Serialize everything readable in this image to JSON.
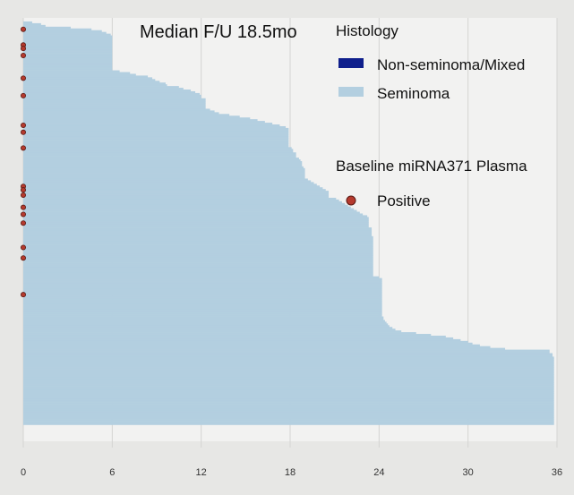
{
  "chart_data": {
    "type": "bar",
    "orientation": "horizontal",
    "title": "Median F/U 18.5mo",
    "xlabel": "",
    "ylabel": "",
    "xlim": [
      0,
      36
    ],
    "x_ticks": [
      "0",
      "6",
      "12",
      "18",
      "24",
      "30",
      "36"
    ],
    "grid": "vertical",
    "legend": {
      "placement": "top-right",
      "histology_title": "Histology",
      "histology_items": [
        {
          "label": "Non-seminoma/Mixed",
          "color": "#0f1f8c"
        },
        {
          "label": "Seminoma",
          "color": "#b3cfe0"
        }
      ],
      "marker_title": "Baseline miRNA371 Plasma",
      "marker_items": [
        {
          "label": "Positive",
          "color": "#b53a2e"
        }
      ]
    },
    "series": [
      {
        "name": "Seminoma",
        "values": [
          0.0,
          0.6,
          1.2,
          1.5,
          3.2,
          4.6,
          5.3,
          5.6,
          5.9,
          6.0,
          6.0,
          6.0,
          6.0,
          6.0,
          6.0,
          6.0,
          6.0,
          6.0,
          6.0,
          6.0,
          6.0,
          6.0,
          6.0,
          6.0,
          6.0,
          6.0,
          6.0,
          6.0,
          6.0,
          6.5,
          7.2,
          7.6,
          8.4,
          8.7,
          8.9,
          9.2,
          9.6,
          9.7,
          10.5,
          10.8,
          11.3,
          11.6,
          11.9,
          12.0,
          12.0,
          12.3,
          12.3,
          12.3,
          12.3,
          12.3,
          12.3,
          12.6,
          12.9,
          13.2,
          13.9,
          14.6,
          15.3,
          15.8,
          16.3,
          16.8,
          17.3,
          17.7,
          17.9,
          17.9,
          17.9,
          17.9,
          17.9,
          17.9,
          17.9,
          17.9,
          17.9,
          17.9,
          17.9,
          18.1,
          18.2,
          18.2,
          18.4,
          18.4,
          18.4,
          18.6,
          18.7,
          18.8,
          18.8,
          18.8,
          18.9,
          19.0,
          19.0,
          19.0,
          19.0,
          19.0,
          19.0,
          19.2,
          19.4,
          19.6,
          19.8,
          20.0,
          20.2,
          20.4,
          20.6,
          20.6,
          20.6,
          20.6,
          21.1,
          21.3,
          21.5,
          21.7,
          21.9,
          22.1,
          22.3,
          22.5,
          22.7,
          22.9,
          23.2,
          23.3,
          23.3,
          23.3,
          23.3,
          23.3,
          23.3,
          23.5,
          23.5,
          23.5,
          23.5,
          23.5,
          23.6,
          23.6,
          23.6,
          23.6,
          23.6,
          23.6,
          23.6,
          23.6,
          23.6,
          23.6,
          23.6,
          23.6,
          23.6,
          23.6,
          23.6,
          23.6,
          23.6,
          23.6,
          23.6,
          23.6,
          23.6,
          23.6,
          23.6,
          24.0,
          24.2,
          24.2,
          24.2,
          24.2,
          24.2,
          24.2,
          24.2,
          24.2,
          24.2,
          24.2,
          24.2,
          24.2,
          24.2,
          24.2,
          24.2,
          24.2,
          24.2,
          24.2,
          24.2,
          24.2,
          24.2,
          24.2,
          24.3,
          24.3,
          24.4,
          24.5,
          24.6,
          24.7,
          24.9,
          25.1,
          25.5,
          26.5,
          27.5,
          28.5,
          29.0,
          29.5,
          30.0,
          30.3,
          30.8,
          31.5,
          32.5,
          35.5,
          35.5,
          35.7,
          35.7,
          35.8,
          35.8,
          35.8,
          35.8,
          35.8,
          35.8,
          35.8,
          35.8,
          35.8,
          35.8,
          35.8,
          35.8,
          35.8,
          35.8,
          35.8,
          35.8,
          35.8,
          35.8,
          35.8,
          35.8,
          35.8,
          35.8,
          35.8,
          35.8,
          35.8,
          35.8,
          35.8,
          35.8,
          35.8,
          35.8,
          35.8,
          35.8,
          35.8,
          35.8,
          35.8,
          35.8,
          35.8,
          35.8,
          35.8
        ]
      },
      {
        "name": "Non-seminoma/Mixed",
        "values": [
          0,
          0,
          0,
          0,
          0,
          0,
          0,
          0,
          0,
          0,
          0,
          0,
          0,
          0,
          0,
          0,
          0,
          0,
          0,
          0,
          0,
          0,
          0,
          0,
          0,
          0,
          0,
          0,
          0,
          0,
          0,
          0,
          0,
          0,
          0,
          0,
          0,
          0,
          0,
          0,
          0,
          0,
          0,
          0,
          0,
          0,
          0,
          0,
          0,
          0,
          0,
          0,
          0,
          0,
          0,
          0,
          0,
          0,
          0,
          0,
          0,
          0,
          0,
          0,
          0,
          0,
          0,
          0,
          0,
          0,
          0,
          0,
          0,
          0,
          0,
          0,
          0,
          0,
          0,
          0,
          0,
          0,
          0,
          0,
          0,
          0,
          0,
          0,
          0,
          0,
          0,
          0,
          0,
          0,
          0,
          0,
          0,
          0,
          0,
          0,
          0,
          0,
          0,
          0,
          0,
          0,
          0,
          0,
          0,
          0,
          0,
          0,
          0,
          0,
          0,
          0,
          0,
          0,
          0,
          0,
          0,
          0,
          0,
          0,
          0,
          0,
          0,
          0,
          0,
          0,
          0,
          0,
          0,
          0,
          0,
          0,
          0,
          0,
          0,
          0,
          0,
          0,
          0,
          0,
          0,
          0,
          0,
          0,
          0,
          0,
          0,
          0,
          0,
          0,
          0,
          0,
          0,
          0,
          0,
          0,
          0,
          0,
          0,
          0,
          0,
          0,
          0,
          0,
          0,
          0,
          0,
          0,
          0,
          0,
          0,
          0,
          0,
          0,
          0,
          0,
          0,
          0,
          0,
          0,
          0,
          0,
          0,
          0,
          0,
          0,
          0,
          0,
          0,
          0,
          0,
          0,
          0,
          0,
          0,
          0,
          0,
          0,
          0,
          0,
          0,
          0,
          0,
          0,
          0,
          0,
          0,
          0,
          0,
          0,
          0,
          0,
          0,
          0,
          0,
          0,
          0,
          0,
          0,
          0,
          0,
          0,
          0,
          0,
          0,
          0,
          0,
          0,
          0,
          0,
          0,
          0,
          0,
          0,
          0,
          0,
          0
        ]
      }
    ],
    "positive_markers": [
      5,
      14,
      16,
      20,
      33,
      43,
      60,
      64,
      73,
      95,
      97,
      100,
      107,
      111,
      116,
      130,
      136,
      157
    ],
    "rows_note_omitted": true
  }
}
